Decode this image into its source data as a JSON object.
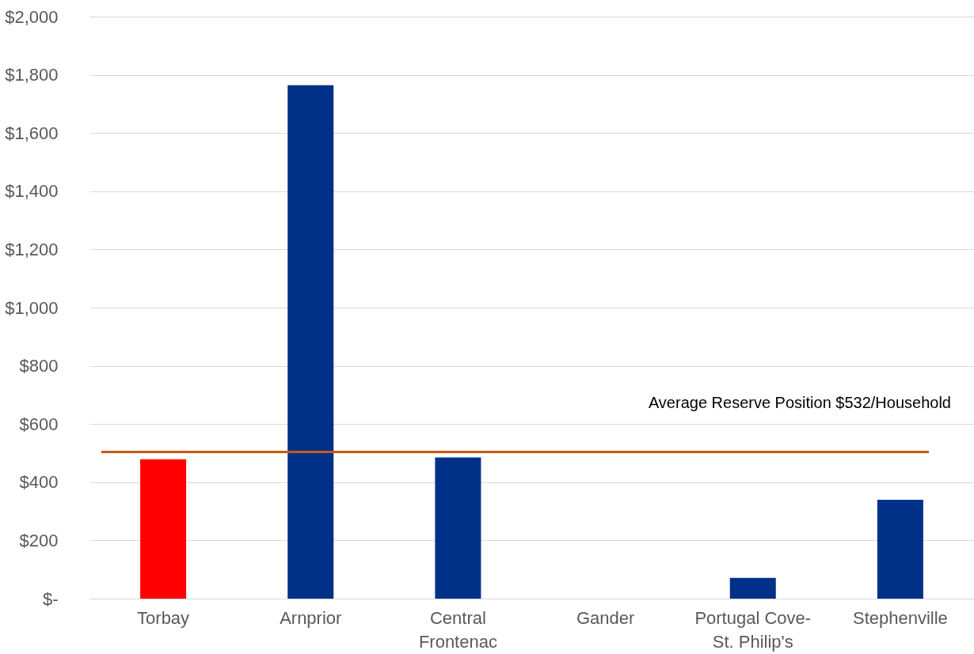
{
  "chart_data": {
    "type": "bar",
    "categories": [
      "Torbay",
      "Arnprior",
      "Central\nFrontenac",
      "Gander",
      "Portugal Cove-\nSt. Philip's",
      "Stephenville"
    ],
    "values": [
      479,
      1764,
      485,
      0,
      71,
      340
    ],
    "colors": [
      "#ff0000",
      "#003087",
      "#003087",
      "#003087",
      "#003087",
      "#003087"
    ],
    "ylim": [
      0,
      2000
    ],
    "yticks": [
      {
        "value": 0,
        "label": "$-"
      },
      {
        "value": 200,
        "label": "$200"
      },
      {
        "value": 400,
        "label": "$400"
      },
      {
        "value": 600,
        "label": "$600"
      },
      {
        "value": 800,
        "label": "$800"
      },
      {
        "value": 1000,
        "label": "$1,000"
      },
      {
        "value": 1200,
        "label": "$1,200"
      },
      {
        "value": 1400,
        "label": "$1,400"
      },
      {
        "value": 1600,
        "label": "$1,600"
      },
      {
        "value": 1800,
        "label": "$1,800"
      },
      {
        "value": 2000,
        "label": "$2,000"
      }
    ],
    "grid": "y",
    "ref_lines": [
      {
        "axis": "y",
        "value": 504,
        "label": "Average Reserve Position $532/Household",
        "color": "#c55a11"
      }
    ]
  }
}
